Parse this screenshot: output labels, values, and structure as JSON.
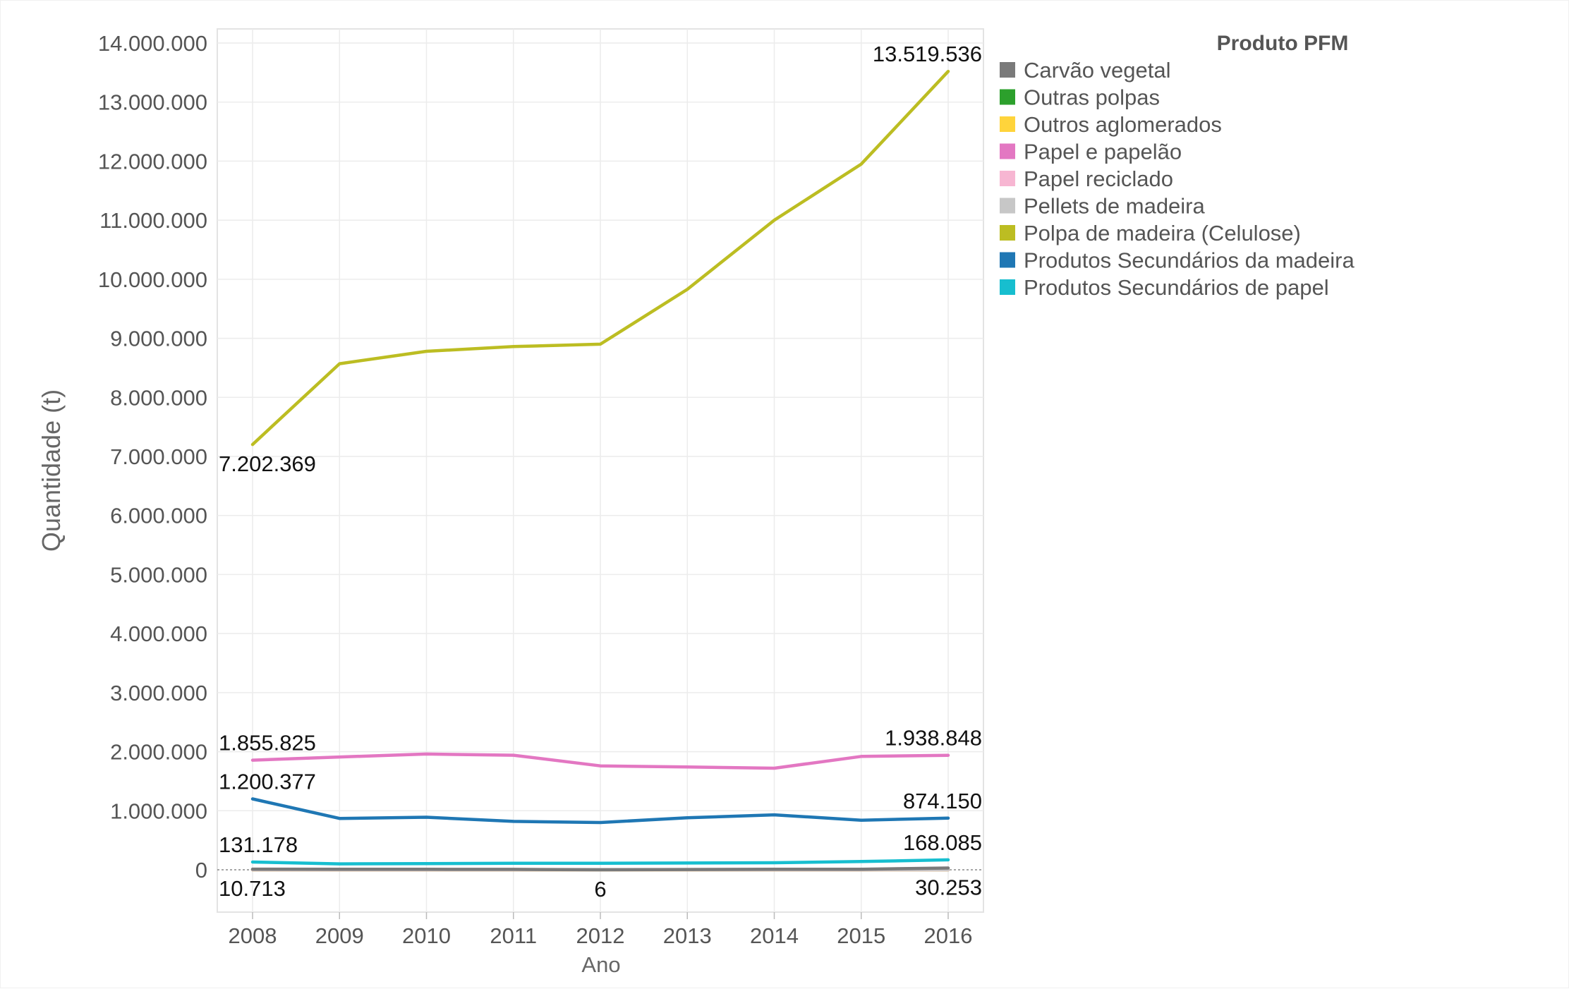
{
  "chart_data": {
    "type": "line",
    "x": [
      2008,
      2009,
      2010,
      2011,
      2012,
      2013,
      2014,
      2015,
      2016
    ],
    "xlabel": "Ano",
    "ylabel": "Quantidade (t)",
    "ylim": [
      -700000,
      14200000
    ],
    "yticks": [
      0,
      1000000,
      2000000,
      3000000,
      4000000,
      5000000,
      6000000,
      7000000,
      8000000,
      9000000,
      10000000,
      11000000,
      12000000,
      13000000,
      14000000
    ],
    "ytick_labels": [
      "0",
      "1.000.000",
      "2.000.000",
      "3.000.000",
      "4.000.000",
      "5.000.000",
      "6.000.000",
      "7.000.000",
      "8.000.000",
      "9.000.000",
      "10.000.000",
      "11.000.000",
      "12.000.000",
      "13.000.000",
      "14.000.000"
    ],
    "grid": true,
    "legend": {
      "title": "Produto PFM",
      "position": "right"
    },
    "series": [
      {
        "name": "Carvão vegetal",
        "color": "#7a7a7a",
        "values": [
          10713,
          9000,
          8000,
          7000,
          6,
          5000,
          8000,
          9000,
          30253
        ]
      },
      {
        "name": "Outras polpas",
        "color": "#2ca02c",
        "values": [
          0,
          0,
          0,
          0,
          0,
          0,
          0,
          0,
          0
        ]
      },
      {
        "name": "Outros aglomerados",
        "color": "#ffd43b",
        "values": [
          0,
          0,
          0,
          0,
          0,
          0,
          0,
          0,
          0
        ]
      },
      {
        "name": "Papel e papelão",
        "color": "#e377c2",
        "values": [
          1855825,
          1910000,
          1960000,
          1940000,
          1760000,
          1740000,
          1720000,
          1920000,
          1938848
        ]
      },
      {
        "name": "Papel reciclado",
        "color": "#f7b6d2",
        "values": [
          0,
          0,
          0,
          0,
          0,
          0,
          0,
          0,
          0
        ]
      },
      {
        "name": "Pellets de madeira",
        "color": "#c7c7c7",
        "values": [
          5000,
          5000,
          5000,
          5000,
          5000,
          5000,
          5000,
          5000,
          5000
        ]
      },
      {
        "name": "Polpa de madeira (Celulose)",
        "color": "#bcbd22",
        "values": [
          7202369,
          8570000,
          8780000,
          8860000,
          8900000,
          9830000,
          11000000,
          11950000,
          13519536
        ]
      },
      {
        "name": "Produtos Secundários da madeira",
        "color": "#1f77b4",
        "values": [
          1200377,
          870000,
          890000,
          820000,
          800000,
          880000,
          930000,
          840000,
          874150
        ]
      },
      {
        "name": "Produtos Secundários de papel",
        "color": "#17becf",
        "values": [
          131178,
          100000,
          105000,
          110000,
          110000,
          115000,
          120000,
          140000,
          168085
        ]
      }
    ],
    "annotations": [
      {
        "series": "Polpa de madeira (Celulose)",
        "x": 2008,
        "text": "7.202.369",
        "placement": "below"
      },
      {
        "series": "Polpa de madeira (Celulose)",
        "x": 2016,
        "text": "13.519.536",
        "placement": "above"
      },
      {
        "series": "Papel e papelão",
        "x": 2008,
        "text": "1.855.825",
        "placement": "above"
      },
      {
        "series": "Papel e papelão",
        "x": 2016,
        "text": "1.938.848",
        "placement": "above"
      },
      {
        "series": "Produtos Secundários da madeira",
        "x": 2008,
        "text": "1.200.377",
        "placement": "above"
      },
      {
        "series": "Produtos Secundários da madeira",
        "x": 2016,
        "text": "874.150",
        "placement": "above"
      },
      {
        "series": "Produtos Secundários de papel",
        "x": 2008,
        "text": "131.178",
        "placement": "above"
      },
      {
        "series": "Produtos Secundários de papel",
        "x": 2016,
        "text": "168.085",
        "placement": "above"
      },
      {
        "series": "Carvão vegetal",
        "x": 2008,
        "text": "10.713",
        "placement": "below"
      },
      {
        "series": "Carvão vegetal",
        "x": 2012,
        "text": "6",
        "placement": "below"
      },
      {
        "series": "Carvão vegetal",
        "x": 2016,
        "text": "30.253",
        "placement": "below"
      }
    ]
  }
}
